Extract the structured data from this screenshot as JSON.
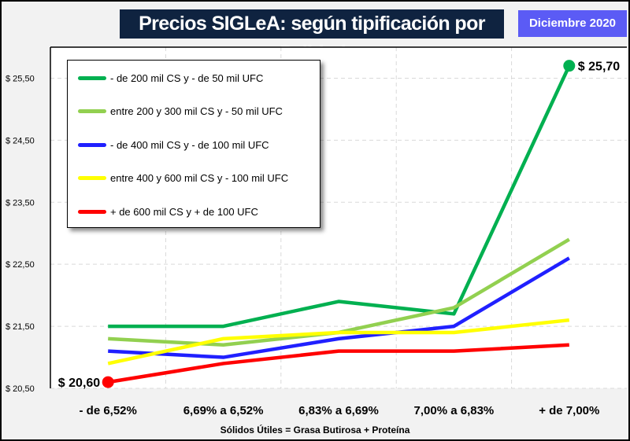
{
  "chart_data": {
    "type": "line",
    "title": "Precios SIGLeA: según tipificación por Calidad",
    "subtitle": "Diciembre 2020",
    "xlabel": "Sólidos Útiles = Grasa Butirosa + Proteína",
    "ylabel": "",
    "categories": [
      "- de 6,52%",
      "6,69% a 6,52%",
      "6,83% a 6,69%",
      "7,00% a 6,83%",
      "+ de 7,00%"
    ],
    "ylim": [
      20.5,
      26.0
    ],
    "yticks": [
      20.5,
      21.5,
      22.5,
      23.5,
      24.5,
      25.5
    ],
    "ytick_labels": [
      "$ 20,50",
      "$ 21,50",
      "$ 22,50",
      "$ 23,50",
      "$ 24,50",
      "$ 25,50"
    ],
    "grid": true,
    "legend_position": "top-left",
    "series": [
      {
        "name": "- de 200 mil CS y - de 50 mil UFC",
        "color": "#00b050",
        "values": [
          21.5,
          21.5,
          21.9,
          21.7,
          25.7
        ]
      },
      {
        "name": "entre 200 y 300 mil CS y - 50 mil UFC",
        "color": "#92d050",
        "values": [
          21.3,
          21.2,
          21.4,
          21.8,
          22.9
        ]
      },
      {
        "name": "- de 400 mil CS y - de 100 mil UFC",
        "color": "#2020ff",
        "values": [
          21.1,
          21.0,
          21.3,
          21.5,
          22.6
        ]
      },
      {
        "name": "entre 400 y 600 mil CS y - 100 mil UFC",
        "color": "#ffff00",
        "values": [
          20.9,
          21.3,
          21.4,
          21.4,
          21.6
        ]
      },
      {
        "name": "+ de 600 mil CS y + de 100 UFC",
        "color": "#ff0000",
        "values": [
          20.6,
          20.9,
          21.1,
          21.1,
          21.2
        ]
      }
    ],
    "annotations": [
      {
        "text": "$ 25,70",
        "series": 0,
        "index": 4
      },
      {
        "text": "$ 20,60",
        "series": 4,
        "index": 0
      }
    ]
  }
}
